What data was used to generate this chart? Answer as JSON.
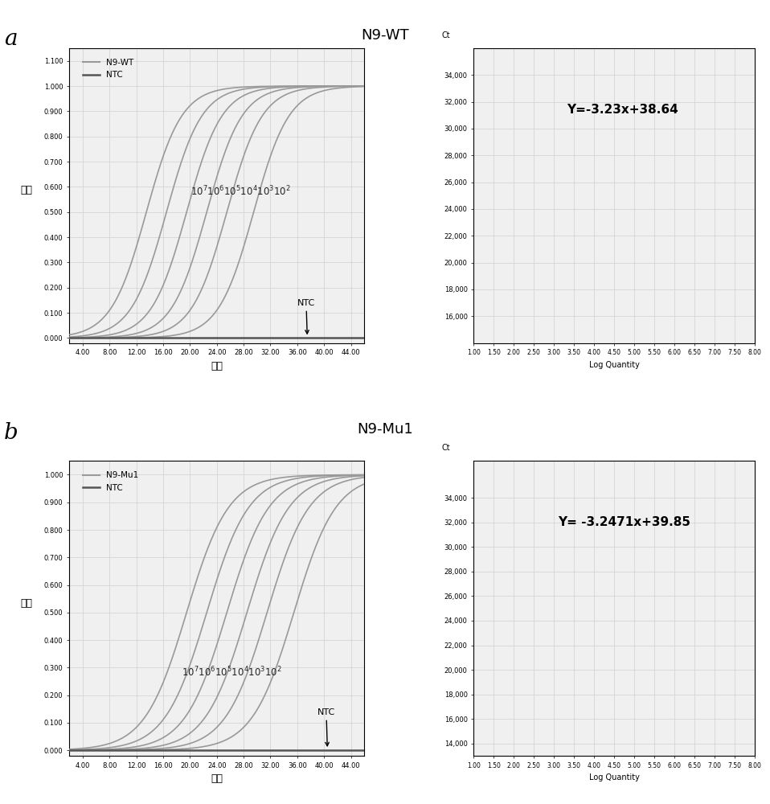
{
  "panel_a_title": "N9-WT",
  "panel_b_title": "N9-Mu1",
  "xlabel_pcr": "循环",
  "ylabel_pcr": "荧光",
  "xlabel_std": "Log Quantity",
  "pcr_xlim": [
    2,
    46
  ],
  "pcr_xticks": [
    4.0,
    8.0,
    12.0,
    16.0,
    20.0,
    24.0,
    28.0,
    32.0,
    36.0,
    40.0,
    44.0
  ],
  "pcr_xtick_labels": [
    "4.00",
    "8.00",
    "12.00",
    "16.00",
    "20.00",
    "24.00",
    "28.00",
    "32.00",
    "36.00",
    "40.00",
    "44.00"
  ],
  "pcr_ylim_a": [
    -0.02,
    1.15
  ],
  "pcr_yticks_a": [
    0.0,
    0.1,
    0.2,
    0.3,
    0.4,
    0.5,
    0.6,
    0.7,
    0.8,
    0.9,
    1.0,
    1.1
  ],
  "pcr_ytick_labels_a": [
    "0.000",
    "0.100",
    "0.200",
    "0.300",
    "0.400",
    "0.500",
    "0.600",
    "0.700",
    "0.800",
    "0.900",
    "1.000",
    "1.100"
  ],
  "pcr_ylim_b": [
    -0.02,
    1.05
  ],
  "pcr_yticks_b": [
    0.0,
    0.1,
    0.2,
    0.3,
    0.4,
    0.5,
    0.6,
    0.7,
    0.8,
    0.9,
    1.0
  ],
  "pcr_ytick_labels_b": [
    "0.000",
    "0.100",
    "0.200",
    "0.300",
    "0.400",
    "0.500",
    "0.600",
    "0.700",
    "0.800",
    "0.900",
    "1.000"
  ],
  "std_xlim": [
    1.0,
    8.0
  ],
  "std_xticks": [
    1.0,
    1.5,
    2.0,
    2.5,
    3.0,
    3.5,
    4.0,
    4.5,
    5.0,
    5.5,
    6.0,
    6.5,
    7.0,
    7.5,
    8.0
  ],
  "std_xtick_labels": [
    "1.00",
    "1.50",
    "2.00",
    "2.50",
    "3.00",
    "3.50",
    "4.00",
    "4.50",
    "5.00",
    "5.50",
    "6.00",
    "6.50",
    "7.00",
    "7.50",
    "8.00"
  ],
  "std_a_ylim": [
    14000,
    36000
  ],
  "std_a_yticks": [
    16000,
    18000,
    20000,
    22000,
    24000,
    26000,
    28000,
    30000,
    32000,
    34000
  ],
  "std_a_ytick_labels": [
    "16,000",
    "18,000",
    "20,000",
    "22,000",
    "24,000",
    "26,000",
    "28,000",
    "30,000",
    "32,000",
    "34,000"
  ],
  "std_a_slope": -3.23,
  "std_a_intercept": 38.64,
  "std_a_equation": "Y=-3.23x+38.64",
  "std_b_ylim": [
    13000,
    37000
  ],
  "std_b_yticks": [
    14000,
    16000,
    18000,
    20000,
    22000,
    24000,
    26000,
    28000,
    30000,
    32000,
    34000
  ],
  "std_b_ytick_labels": [
    "14,000",
    "16,000",
    "18,000",
    "20,000",
    "22,000",
    "24,000",
    "26,000",
    "28,000",
    "30,000",
    "32,000",
    "34,000"
  ],
  "std_b_slope": -3.2471,
  "std_b_intercept": 39.85,
  "std_b_equation": "Y= -3.2471x+39.85",
  "curve_color": "#999999",
  "ntc_color": "#555555",
  "std_line_color": "#888888",
  "std_point_color": "#444444",
  "background_color": "#f0f0f0",
  "grid_color": "#d0d0d0",
  "midpoints_a": [
    13.5,
    16.5,
    19.5,
    22.5,
    25.5,
    29.5
  ],
  "steepness_a": 0.38,
  "midpoints_b": [
    19.5,
    22.5,
    25.5,
    28.5,
    31.5,
    35.5
  ],
  "steepness_b": 0.32,
  "std_points_a_x": [
    2.0,
    3.0,
    4.0,
    5.0,
    6.0,
    7.0
  ],
  "std_points_b_x": [
    2.0,
    3.0,
    4.0,
    5.0,
    6.0,
    7.0
  ]
}
